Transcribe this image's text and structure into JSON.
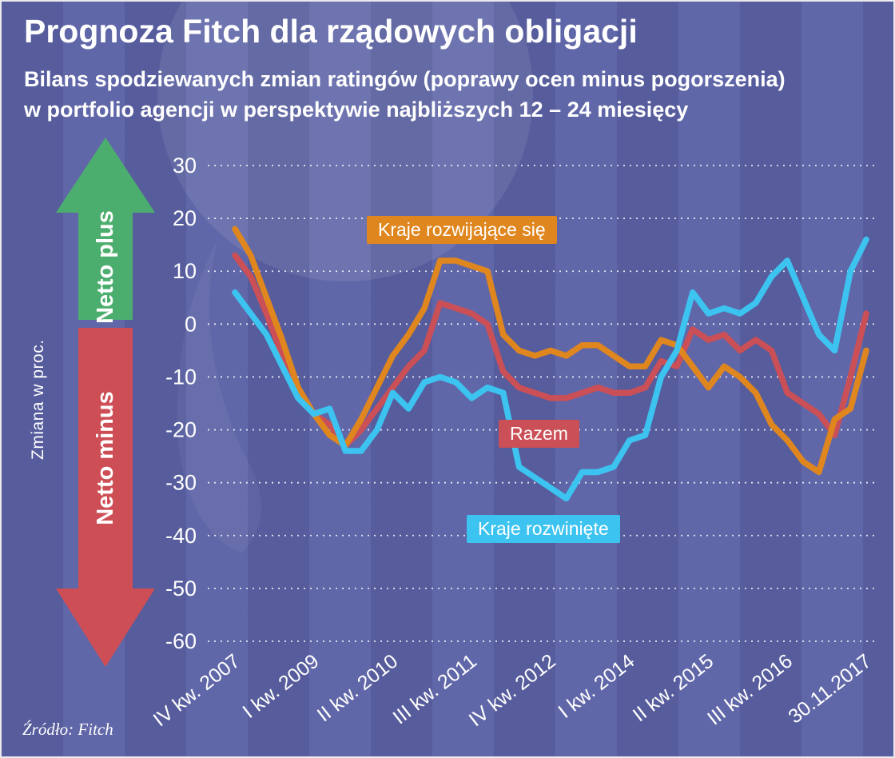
{
  "title": "Prognoza Fitch dla rządowych obligacji",
  "subtitle_line1": "Bilans spodziewanych zmian ratingów (poprawy ocen minus pogorszenia)",
  "subtitle_line2": "w portfolio agencji w perspektywie najbliższych 12 – 24 miesięcy",
  "source": "Źródło: Fitch",
  "axis_left": {
    "label": "Zmiana w proc.",
    "netto_plus": "Netto plus",
    "netto_minus": "Netto minus"
  },
  "colors": {
    "background": "#5e65a7",
    "arrow_up_green": "#4cae6e",
    "arrow_down_red": "#ce4e55",
    "gridline": "rgba(255,255,255,0.85)",
    "text": "#ffffff"
  },
  "chart_data": {
    "type": "line",
    "title": "Prognoza Fitch dla rządowych obligacji",
    "ylabel": "Zmiana w proc.",
    "ylim": [
      -60,
      30
    ],
    "y_ticks": [
      30,
      20,
      10,
      0,
      -10,
      -20,
      -30,
      -40,
      -50,
      -60
    ],
    "grid": "dashed horizontal",
    "x_count": 41,
    "x_tick_labels": [
      "IV kw. 2007",
      "I kw. 2009",
      "II kw. 2010",
      "III kw. 2011",
      "IV kw. 2012",
      "I kw. 2014",
      "II kw. 2015",
      "III kw. 2016",
      "30.11.2017"
    ],
    "x_tick_indices": [
      0,
      5,
      10,
      15,
      20,
      25,
      30,
      35,
      40
    ],
    "series": [
      {
        "name": "Kraje rozwijające się",
        "color": "#df861e",
        "values": [
          18,
          13,
          5,
          -3,
          -12,
          -17,
          -21,
          -23,
          -18,
          -12,
          -6,
          -2,
          3,
          12,
          12,
          11,
          10,
          -2,
          -5,
          -6,
          -5,
          -6,
          -4,
          -4,
          -6,
          -8,
          -8,
          -3,
          -4,
          -8,
          -12,
          -8,
          -10,
          -13,
          -19,
          -22,
          -26,
          -28,
          -18,
          -16,
          -5
        ]
      },
      {
        "name": "Razem",
        "color": "#ca4f56",
        "values": [
          13,
          9,
          2,
          -6,
          -13,
          -17,
          -19,
          -23,
          -20,
          -16,
          -12,
          -8,
          -5,
          4,
          3,
          2,
          0,
          -9,
          -12,
          -13,
          -14,
          -14,
          -13,
          -12,
          -13,
          -13,
          -12,
          -7,
          -8,
          -1,
          -3,
          -2,
          -5,
          -3,
          -5,
          -13,
          -15,
          -17,
          -21,
          -10,
          2
        ]
      },
      {
        "name": "Kraje rozwinięte",
        "color": "#3cc3f0",
        "values": [
          6,
          2,
          -2,
          -8,
          -14,
          -17,
          -16,
          -24,
          -24,
          -20,
          -13,
          -16,
          -11,
          -10,
          -11,
          -14,
          -12,
          -13,
          -27,
          -29,
          -31,
          -33,
          -28,
          -28,
          -27,
          -22,
          -21,
          -10,
          -5,
          6,
          2,
          3,
          2,
          4,
          9,
          12,
          5,
          -2,
          -5,
          10,
          16
        ]
      }
    ],
    "legend_position": "inline-labels-on-chart"
  }
}
